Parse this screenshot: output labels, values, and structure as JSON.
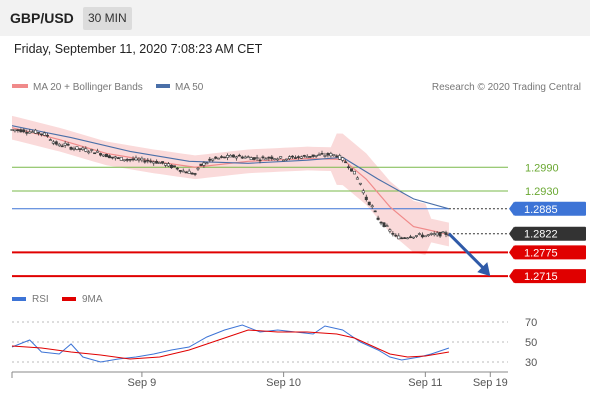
{
  "header": {
    "symbol": "GBP/USD",
    "timeframe": "30 MIN"
  },
  "timestamp": "Friday, September 11, 2020 7:08:23 AM CET",
  "colors": {
    "ma20": "#f08a8a",
    "band": "#fadada",
    "ma50": "#4a6fa8",
    "candle": "#3a3a3a",
    "green": "#7ab94a",
    "blue": "#3d74d6",
    "red": "#e00000",
    "current": "#333333",
    "arrow": "#2f5aa8",
    "rsi": "#3d74d6"
  },
  "chart_data": [
    {
      "type": "line",
      "title": "GBP/USD",
      "xlabel": "",
      "ylabel": "",
      "legend": [
        "MA 20 + Bollinger Bands",
        "MA 50"
      ],
      "source": "Research © 2020 Trading Central",
      "x_ticks": [
        "Sep 9",
        "Sep 10",
        "Sep 11",
        "Sep 19"
      ],
      "ylim": [
        1.27,
        1.316
      ],
      "price_path": [
        [
          0,
          1.3085
        ],
        [
          2,
          1.3083
        ],
        [
          3,
          1.308
        ],
        [
          4,
          1.3079
        ],
        [
          5,
          1.3076
        ],
        [
          6,
          1.307
        ],
        [
          7,
          1.3055
        ],
        [
          8,
          1.3045
        ],
        [
          9,
          1.3048
        ],
        [
          10,
          1.304
        ],
        [
          12,
          1.3035
        ],
        [
          14,
          1.303
        ],
        [
          16,
          1.302
        ],
        [
          18,
          1.3012
        ],
        [
          20,
          1.301
        ],
        [
          22,
          1.3008
        ],
        [
          24,
          1.3005
        ],
        [
          25,
          1.3002
        ],
        [
          26,
          1.2998
        ],
        [
          27,
          1.2992
        ],
        [
          28,
          1.2988
        ],
        [
          29,
          1.298
        ],
        [
          30,
          1.2978
        ],
        [
          31,
          1.2972
        ],
        [
          32,
          1.2995
        ],
        [
          34,
          1.301
        ],
        [
          36,
          1.3015
        ],
        [
          38,
          1.3018
        ],
        [
          40,
          1.3015
        ],
        [
          42,
          1.3012
        ],
        [
          44,
          1.3015
        ],
        [
          46,
          1.3012
        ],
        [
          48,
          1.3015
        ],
        [
          50,
          1.3018
        ],
        [
          52,
          1.302
        ],
        [
          54,
          1.3022
        ],
        [
          55,
          1.302
        ],
        [
          56,
          1.301
        ],
        [
          57,
          1.2995
        ],
        [
          58,
          1.2975
        ],
        [
          59,
          1.295
        ],
        [
          60,
          1.291
        ],
        [
          61,
          1.289
        ],
        [
          62,
          1.286
        ],
        [
          63,
          1.2845
        ],
        [
          64,
          1.283
        ],
        [
          65,
          1.2815
        ],
        [
          66,
          1.2812
        ],
        [
          67,
          1.2815
        ],
        [
          68,
          1.2817
        ],
        [
          69,
          1.2818
        ],
        [
          70,
          1.2817
        ],
        [
          71,
          1.2819
        ],
        [
          72,
          1.282
        ],
        [
          73,
          1.2822
        ],
        [
          74,
          1.2822
        ]
      ],
      "series": [
        {
          "name": "MA 20 + Bollinger Bands",
          "values": [
            [
              0,
              1.309
            ],
            [
              8,
              1.306
            ],
            [
              16,
              1.3025
            ],
            [
              24,
              1.3005
            ],
            [
              31,
              1.299
            ],
            [
              40,
              1.3005
            ],
            [
              50,
              1.3012
            ],
            [
              56,
              1.301
            ],
            [
              60,
              1.296
            ],
            [
              64,
              1.289
            ],
            [
              68,
              1.284
            ],
            [
              74,
              1.282
            ]
          ]
        },
        {
          "name": "MA 50",
          "values": [
            [
              0,
              1.3095
            ],
            [
              10,
              1.3065
            ],
            [
              20,
              1.303
            ],
            [
              30,
              1.3005
            ],
            [
              40,
              1.3
            ],
            [
              50,
              1.3008
            ],
            [
              56,
              1.3015
            ],
            [
              62,
              1.296
            ],
            [
              68,
              1.291
            ],
            [
              74,
              1.2885
            ]
          ]
        }
      ],
      "levels": [
        {
          "label": "1.2990",
          "value": 1.299,
          "kind": "resistance-green"
        },
        {
          "label": "1.2930",
          "value": 1.293,
          "kind": "resistance-green"
        },
        {
          "label": "1.2885",
          "value": 1.2885,
          "kind": "pivot"
        },
        {
          "label": "1.2822",
          "value": 1.2822,
          "kind": "current"
        },
        {
          "label": "1.2775",
          "value": 1.2775,
          "kind": "support"
        },
        {
          "label": "1.2715",
          "value": 1.2715,
          "kind": "support"
        }
      ],
      "forecast_arrow": {
        "from": [
          74,
          1.2822
        ],
        "to": [
          81,
          1.2715
        ]
      }
    },
    {
      "type": "line",
      "title": "RSI",
      "legend": [
        "RSI",
        "9MA"
      ],
      "yticks": [
        70,
        50,
        30
      ],
      "ylim": [
        20,
        80
      ],
      "series": [
        {
          "name": "RSI",
          "values": [
            [
              0,
              45
            ],
            [
              3,
              52
            ],
            [
              5,
              40
            ],
            [
              8,
              38
            ],
            [
              10,
              48
            ],
            [
              12,
              35
            ],
            [
              15,
              30
            ],
            [
              18,
              33
            ],
            [
              21,
              35
            ],
            [
              24,
              38
            ],
            [
              27,
              42
            ],
            [
              30,
              45
            ],
            [
              33,
              55
            ],
            [
              36,
              62
            ],
            [
              39,
              67
            ],
            [
              42,
              60
            ],
            [
              45,
              62
            ],
            [
              48,
              60
            ],
            [
              51,
              58
            ],
            [
              53,
              66
            ],
            [
              56,
              62
            ],
            [
              59,
              50
            ],
            [
              62,
              42
            ],
            [
              64,
              35
            ],
            [
              66,
              32
            ],
            [
              69,
              35
            ],
            [
              71,
              38
            ],
            [
              73,
              42
            ],
            [
              74,
              44
            ]
          ]
        },
        {
          "name": "9MA",
          "values": [
            [
              0,
              46
            ],
            [
              5,
              44
            ],
            [
              10,
              40
            ],
            [
              15,
              37
            ],
            [
              20,
              33
            ],
            [
              25,
              35
            ],
            [
              30,
              42
            ],
            [
              35,
              52
            ],
            [
              40,
              62
            ],
            [
              45,
              60
            ],
            [
              50,
              60
            ],
            [
              55,
              58
            ],
            [
              58,
              54
            ],
            [
              61,
              46
            ],
            [
              64,
              38
            ],
            [
              67,
              35
            ],
            [
              70,
              36
            ],
            [
              72,
              38
            ],
            [
              74,
              40
            ]
          ]
        }
      ]
    }
  ]
}
